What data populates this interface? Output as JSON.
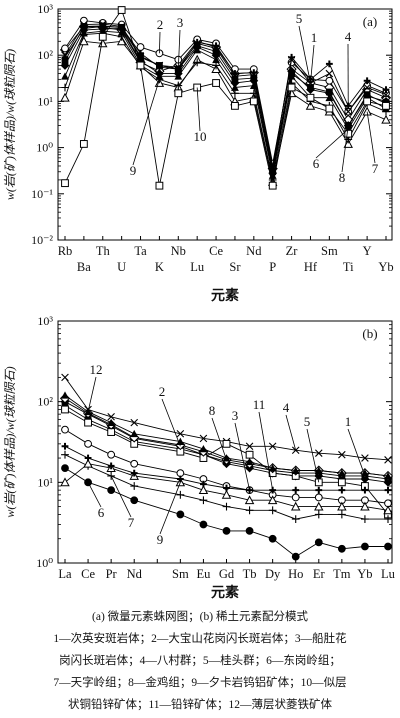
{
  "chart_data": [
    {
      "type": "line",
      "panel_label": "(a)",
      "ylabel": "w(岩(矿)体样品)/w(球粒陨石)",
      "xlabel": "元素",
      "y_scale": "log",
      "ylim": [
        0.01,
        1000
      ],
      "y_ticks": [
        "10⁻²",
        "10⁻¹",
        "10⁰",
        "10¹",
        "10²",
        "10³"
      ],
      "categories": [
        "Rb",
        "Ba",
        "Th",
        "U",
        "Ta",
        "K",
        "Nb",
        "Lu",
        "Ce",
        "Sr",
        "Nd",
        "P",
        "Zr",
        "Hf",
        "Sm",
        "Ti",
        "Y",
        "Yb"
      ],
      "series": [
        {
          "name": "1",
          "marker": "diamond-open",
          "values": [
            130,
            420,
            400,
            350,
            70,
            45,
            60,
            200,
            150,
            40,
            42,
            0.35,
            50,
            25,
            20,
            4,
            18,
            12
          ]
        },
        {
          "name": "2",
          "marker": "circle-open",
          "values": [
            140,
            560,
            500,
            460,
            150,
            110,
            80,
            220,
            180,
            50,
            50,
            0.45,
            70,
            30,
            28,
            6,
            22,
            15
          ]
        },
        {
          "name": "3",
          "marker": "square-filled",
          "values": [
            75,
            420,
            430,
            400,
            90,
            60,
            50,
            160,
            120,
            30,
            32,
            0.3,
            40,
            20,
            16,
            3,
            14,
            9
          ]
        },
        {
          "name": "4",
          "marker": "cross",
          "values": [
            90,
            380,
            420,
            400,
            110,
            55,
            50,
            190,
            160,
            40,
            42,
            0.35,
            90,
            30,
            65,
            8,
            28,
            18
          ]
        },
        {
          "name": "5",
          "marker": "x",
          "values": [
            100,
            460,
            470,
            420,
            95,
            60,
            55,
            180,
            140,
            35,
            38,
            0.4,
            80,
            25,
            40,
            6,
            20,
            14
          ]
        },
        {
          "name": "6",
          "marker": "triangle-filled",
          "values": [
            35,
            300,
            330,
            310,
            60,
            35,
            35,
            130,
            80,
            20,
            22,
            0.25,
            35,
            12,
            12,
            2.5,
            12,
            7
          ]
        },
        {
          "name": "7",
          "marker": "triangle-open",
          "values": [
            12,
            200,
            180,
            200,
            60,
            25,
            20,
            80,
            50,
            10,
            12,
            0.18,
            15,
            8,
            6,
            1.2,
            6,
            4
          ]
        },
        {
          "name": "8",
          "marker": "diamond-filled",
          "values": [
            60,
            350,
            370,
            380,
            75,
            40,
            40,
            150,
            100,
            25,
            28,
            0.28,
            45,
            18,
            15,
            3,
            13,
            10
          ]
        },
        {
          "name": "9",
          "marker": "plus",
          "values": [
            20,
            280,
            300,
            250,
            55,
            30,
            22,
            70,
            60,
            15,
            15,
            0.2,
            25,
            10,
            8,
            1.5,
            9,
            6
          ]
        },
        {
          "name": "10",
          "marker": "square-open",
          "values": [
            0.17,
            1.2,
            250,
            950,
            60,
            0.15,
            15,
            20,
            25,
            8,
            10,
            0.15,
            20,
            12,
            7,
            2,
            10,
            8
          ]
        }
      ],
      "series_label_glyphs": [
        "1",
        "2",
        "3",
        "4",
        "5",
        "6",
        "7",
        "8",
        "9",
        "10"
      ]
    },
    {
      "type": "line",
      "panel_label": "(b)",
      "ylabel": "w(岩(矿)体样品)/w(球粒陨石)",
      "xlabel": "元素",
      "y_scale": "log",
      "ylim": [
        1,
        1000
      ],
      "y_ticks": [
        "10⁰",
        "10¹",
        "10²",
        "10³"
      ],
      "categories": [
        "La",
        "Ce",
        "Pr",
        "Nd",
        "Pm",
        "Sm",
        "Eu",
        "Gd",
        "Tb",
        "Dy",
        "Ho",
        "Er",
        "Tm",
        "Yb",
        "Lu"
      ],
      "tick_labels": [
        "La",
        "Ce",
        "Pr",
        "Nd",
        "",
        "Sm",
        "Eu",
        "Gd",
        "Tb",
        "Dy",
        "Ho",
        "Er",
        "Tm",
        "Yb",
        "Lu"
      ],
      "series": [
        {
          "name": "1",
          "marker": "square-filled",
          "values": [
            90,
            60,
            45,
            32,
            null,
            26,
            22,
            18,
            16,
            14,
            13,
            13,
            12,
            12,
            11
          ]
        },
        {
          "name": "2",
          "marker": "diamond-filled",
          "values": [
            100,
            70,
            50,
            35,
            null,
            28,
            22,
            17,
            15,
            13,
            12,
            12,
            11,
            11,
            10
          ]
        },
        {
          "name": "3",
          "marker": "circle-open",
          "values": [
            45,
            30,
            22,
            17,
            null,
            13,
            11,
            9,
            8,
            7,
            6.5,
            6.5,
            6,
            6,
            5.5
          ]
        },
        {
          "name": "4",
          "marker": "x",
          "values": [
            200,
            80,
            65,
            55,
            null,
            40,
            35,
            32,
            28,
            28,
            25,
            23,
            22,
            20,
            19
          ]
        },
        {
          "name": "5",
          "marker": "square-open",
          "values": [
            80,
            55,
            42,
            30,
            null,
            24,
            20,
            30,
            22,
            13,
            12,
            10,
            10,
            9,
            4
          ]
        },
        {
          "name": "6",
          "marker": "circle-filled",
          "values": [
            15,
            10,
            8,
            6,
            null,
            4,
            3,
            2.5,
            2.5,
            2,
            1.2,
            1.8,
            1.5,
            1.6,
            1.6
          ]
        },
        {
          "name": "7",
          "marker": "plus",
          "values": [
            22,
            16,
            12,
            9,
            null,
            7,
            6,
            5,
            4.5,
            4.5,
            3.5,
            4,
            4,
            3.5,
            3.5
          ]
        },
        {
          "name": "8",
          "marker": "diamond-open",
          "values": [
            110,
            72,
            52,
            36,
            null,
            29,
            24,
            19,
            17,
            15,
            14,
            14,
            13,
            13,
            12
          ]
        },
        {
          "name": "9",
          "marker": "triangle-open",
          "values": [
            10,
            17,
            15,
            12,
            null,
            10,
            8,
            7,
            6,
            6,
            5,
            5,
            5,
            5,
            4.5
          ]
        },
        {
          "name": "11",
          "marker": "cross",
          "values": [
            28,
            20,
            16,
            13,
            null,
            11,
            9.5,
            8.5,
            8,
            8,
            8,
            8,
            8,
            8,
            8
          ]
        },
        {
          "name": "12",
          "marker": "triangle-filled",
          "values": [
            120,
            75,
            55,
            40,
            null,
            32,
            26,
            20,
            18,
            15,
            14,
            14,
            13,
            13,
            12
          ]
        }
      ],
      "series_label_glyphs": [
        "1",
        "2",
        "3",
        "4",
        "5",
        "6",
        "7",
        "8",
        "9",
        "11",
        "12"
      ]
    }
  ],
  "caption": {
    "line1": "(a) 微量元素蛛网图；(b) 稀土元素配分模式",
    "line2": "1—次英安斑岩体；2—大宝山花岗闪长斑岩体；3—船肚花",
    "line3": "岗闪长斑岩体；4—八村群；5—桂头群；6—东岗岭组；",
    "line4": "7—天字岭组；8—金鸡组；9—夕卡岩钨铝矿体；10—似层",
    "line5": "状铜铅锌矿体；11—铅锌矿体；12—薄层状菱铁矿体"
  }
}
